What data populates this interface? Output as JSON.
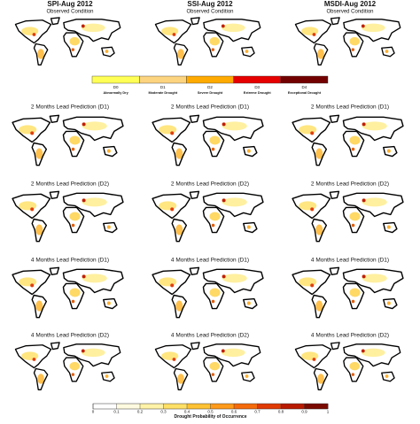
{
  "columns": [
    {
      "title": "SPI-Aug 2012",
      "subtitle": "Observed Condition"
    },
    {
      "title": "SSI-Aug 2012",
      "subtitle": "Observed Condition"
    },
    {
      "title": "MSDI-Aug 2012",
      "subtitle": "Observed Condition"
    }
  ],
  "legend": {
    "items": [
      {
        "code": "D0",
        "label": "Abnormally Dry",
        "color": "#ffff55"
      },
      {
        "code": "D1",
        "label": "Moderate Drought",
        "color": "#fcd37f"
      },
      {
        "code": "D2",
        "label": "Severe Drought",
        "color": "#ffaa00"
      },
      {
        "code": "D3",
        "label": "Extreme Drought",
        "color": "#e60000"
      },
      {
        "code": "D4",
        "label": "Exceptional Drought",
        "color": "#730000"
      }
    ]
  },
  "rows": [
    {
      "panels": [
        "2 Months Lead Prediction (D1)",
        "2 Months Lead Prediction (D1)",
        "2 Months Lead Prediction (D1)"
      ]
    },
    {
      "panels": [
        "2 Months Lead Prediction (D2)",
        "2 Months Lead Prediction (D2)",
        "2 Months Lead Prediction (D2)"
      ]
    },
    {
      "panels": [
        "4 Months Lead Prediction (D1)",
        "4 Months Lead Prediction (D1)",
        "4 Months Lead Prediction (D1)"
      ]
    },
    {
      "panels": [
        "4 Months Lead Prediction (D2)",
        "4 Months Lead Prediction (D2)",
        "4 Months Lead Prediction (D2)"
      ]
    }
  ],
  "colorbar": {
    "ticks": [
      0,
      0.1,
      0.2,
      0.3,
      0.4,
      0.5,
      0.6,
      0.7,
      0.8,
      0.9,
      1
    ],
    "colors": [
      "#ffffff",
      "#fffbe0",
      "#fff3a8",
      "#ffe066",
      "#ffc233",
      "#ff9a1a",
      "#f56a0a",
      "#e03a05",
      "#b81a00",
      "#7a0a00"
    ],
    "label": "Drought Probability of Occurrence"
  }
}
